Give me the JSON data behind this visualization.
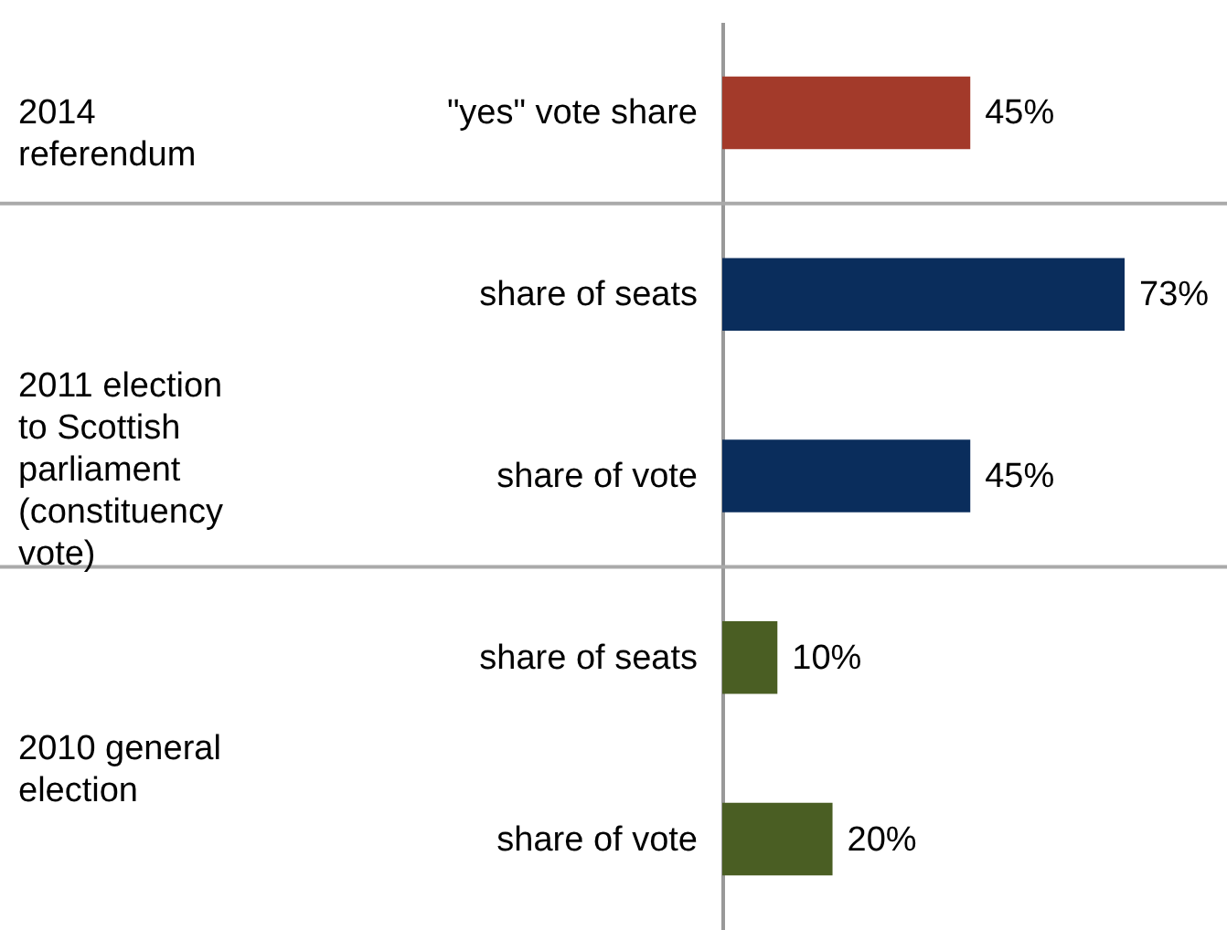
{
  "chart_data": {
    "type": "bar",
    "orientation": "horizontal",
    "categories": [
      "\"yes\" vote share",
      "share of seats",
      "share of vote",
      "share of seats",
      "share of vote"
    ],
    "values": [
      45,
      73,
      45,
      10,
      20
    ],
    "colors": [
      "#a33a2a",
      "#0a2d5c",
      "#0a2d5c",
      "#4a5e23",
      "#4a5e23"
    ],
    "value_labels": [
      "45%",
      "73%",
      "45%",
      "10%",
      "20%"
    ],
    "annotations": [
      "2014\nreferendum",
      "2011 election\nto Scottish\nparliament\n(constituency\nvote)",
      "2010 general\nelection"
    ],
    "grid": false
  }
}
